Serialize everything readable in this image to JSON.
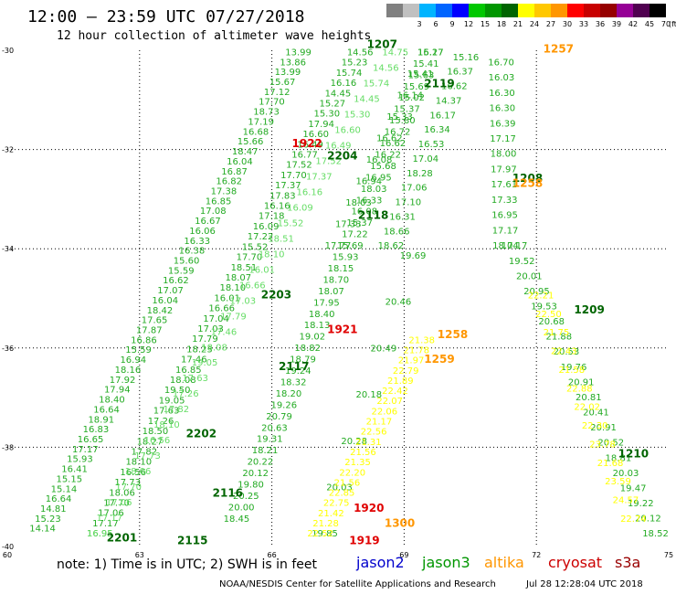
{
  "header": {
    "title": "12:00 – 23:59 UTC 07/27/2018",
    "subtitle": "12 hour collection of altimeter wave heights"
  },
  "color_scale": {
    "unit_label": "(ft)",
    "bins": [
      {
        "label": "",
        "color": "#808080"
      },
      {
        "label": "3",
        "color": "#c0c0c0"
      },
      {
        "label": "6",
        "color": "#00b4ff"
      },
      {
        "label": "9",
        "color": "#0064ff"
      },
      {
        "label": "12",
        "color": "#0000ff"
      },
      {
        "label": "15",
        "color": "#00c800"
      },
      {
        "label": "18",
        "color": "#009600"
      },
      {
        "label": "21",
        "color": "#006400"
      },
      {
        "label": "24",
        "color": "#ffff00"
      },
      {
        "label": "27",
        "color": "#ffc800"
      },
      {
        "label": "30",
        "color": "#ff9600"
      },
      {
        "label": "33",
        "color": "#ff0000"
      },
      {
        "label": "36",
        "color": "#c80000"
      },
      {
        "label": "39",
        "color": "#960000"
      },
      {
        "label": "42",
        "color": "#960096"
      },
      {
        "label": "45",
        "color": "#500050"
      },
      {
        "label": "70",
        "color": "#000000"
      }
    ]
  },
  "map": {
    "lon_range": [
      60,
      75
    ],
    "lat_range": [
      -40,
      -30
    ],
    "lon_ticks": [
      60,
      63,
      66,
      69,
      72,
      75
    ],
    "lat_ticks": [
      -40,
      -38,
      -36,
      -34,
      -32,
      -30
    ],
    "lon_tick_labels": [
      "60",
      "63",
      "66",
      "69",
      "72",
      "75"
    ],
    "lat_tick_labels": [
      "-40",
      "-38",
      "-36",
      "-34",
      "-32",
      "-30"
    ],
    "grid": true
  },
  "text_colors": {
    "light": "#66dd66",
    "mid": "#22aa22",
    "dark": "#006400",
    "yellow": "#ffff00",
    "orange": "#ff9600",
    "red": "#e00000"
  },
  "tracks": [
    {
      "name": "t1",
      "shade": "mid",
      "start": [
        60.8,
        -39.7
      ],
      "end": [
        66.6,
        -30.1
      ],
      "values": [
        "14.14",
        "15.23",
        "14.81",
        "16.64",
        "15.14",
        "15.15",
        "16.41",
        "15.93",
        "17.17",
        "16.65",
        "16.83",
        "18.91",
        "16.64",
        "18.40",
        "17.94",
        "17.92",
        "18.16",
        "16.94",
        "15.59",
        "16.86",
        "17.87",
        "17.65",
        "18.42",
        "16.04",
        "17.07",
        "16.62",
        "15.59",
        "15.60",
        "16.38",
        "16.33",
        "16.06",
        "16.67",
        "17.08",
        "16.85",
        "17.38",
        "16.82",
        "16.87",
        "16.04",
        "18.47",
        "15.66",
        "16.68",
        "17.19",
        "18.73",
        "17.70",
        "17.12",
        "15.67",
        "13.99",
        "13.86",
        "13.99"
      ]
    },
    {
      "name": "t2",
      "shade": "mid",
      "start": [
        62.1,
        -39.8
      ],
      "end": [
        68.0,
        -30.1
      ],
      "values": [
        "16.95",
        "17.17",
        "17.06",
        "17.70",
        "18.06",
        "17.73",
        "16.56",
        "18.10",
        "17.82",
        "18.27",
        "18.50",
        "17.26",
        "17.63",
        "19.05",
        "19.50",
        "18.08",
        "16.85",
        "17.46",
        "18.23",
        "17.79",
        "17.03",
        "17.04",
        "16.66",
        "16.01",
        "18.10",
        "18.07",
        "18.51",
        "17.70",
        "15.52",
        "17.22",
        "16.09",
        "17.18",
        "16.16",
        "17.83",
        "17.37",
        "17.70",
        "17.52",
        "16.77",
        "16.49",
        "16.60",
        "17.94",
        "15.30",
        "15.27",
        "14.45",
        "16.16",
        "15.74",
        "15.23",
        "14.56"
      ]
    },
    {
      "name": "t3",
      "shade": "light",
      "start": [
        62.1,
        -39.8
      ],
      "end": [
        68.8,
        -30.1
      ],
      "values": [
        "16.95",
        "17.17",
        "17.06",
        "17.70",
        "18.06",
        "17.73",
        "16.56",
        "18.10",
        "17.82",
        "17.26",
        "17.63",
        "19.05",
        "18.08",
        "17.46",
        "17.79",
        "17.03",
        "16.66",
        "16.01",
        "18.10",
        "18.51",
        "15.52",
        "16.09",
        "16.16",
        "17.37",
        "17.52",
        "16.49",
        "16.60",
        "15.30",
        "14.45",
        "15.74",
        "14.56",
        "14.75"
      ]
    },
    {
      "name": "t4",
      "shade": "mid",
      "start": [
        65.2,
        -39.5
      ],
      "end": [
        69.6,
        -30.1
      ],
      "values": [
        "18.45",
        "20.00",
        "20.25",
        "19.80",
        "20.12",
        "20.22",
        "18.21",
        "19.31",
        "20.63",
        "20.79",
        "19.26",
        "18.20",
        "18.32",
        "19.24",
        "18.79",
        "18.82",
        "19.02",
        "18.13",
        "18.40",
        "17.95",
        "18.07",
        "18.70",
        "18.15",
        "15.93",
        "15.69",
        "17.22",
        "15.37",
        "16.08",
        "16.33",
        "18.03",
        "16.95",
        "15.68",
        "16.22",
        "16.62",
        "16.72",
        "15.80",
        "15.37",
        "15.02",
        "15.69",
        "15.63",
        "15.41",
        "16.17"
      ]
    },
    {
      "name": "t5",
      "shade": "mid",
      "start": [
        69.6,
        -30.1
      ],
      "end": [
        67.5,
        -34.0
      ],
      "values": [
        "15.27",
        "15.41",
        "16.14",
        "15.33",
        "16.62",
        "16.08",
        "16.94",
        "18.03",
        "17.33",
        "17.77"
      ]
    },
    {
      "name": "t6",
      "shade": "mid",
      "start": [
        70.4,
        -30.2
      ],
      "end": [
        68.7,
        -34.0
      ],
      "values": [
        "15.16",
        "16.37",
        "16.62",
        "14.37",
        "16.17",
        "16.34",
        "16.53",
        "17.04",
        "18.28",
        "17.06",
        "17.10",
        "16.31",
        "18.66",
        "18.62"
      ]
    },
    {
      "name": "t7",
      "shade": "mid",
      "start": [
        69.2,
        -34.2
      ],
      "end": [
        67.2,
        -39.8
      ],
      "values": [
        "19.69",
        "20.46",
        "20.49",
        "20.18",
        "20.28",
        "20.03",
        "19.85"
      ]
    },
    {
      "name": "t8",
      "shade": "yellow",
      "start": [
        69.4,
        -35.9
      ],
      "end": [
        67.1,
        -39.8
      ],
      "values": [
        "21.38",
        "21.78",
        "21.97",
        "22.79",
        "21.89",
        "22.42",
        "22.07",
        "22.06",
        "21.17",
        "22.56",
        "21.31",
        "21.56",
        "21.35",
        "22.20",
        "21.56",
        "22.85",
        "22.75",
        "21.42",
        "21.28",
        "22.52"
      ]
    },
    {
      "name": "t9",
      "shade": "mid",
      "start": [
        71.2,
        -30.3
      ],
      "end": [
        71.3,
        -34.0
      ],
      "values": [
        "16.70",
        "16.03",
        "16.30",
        "16.30",
        "16.39",
        "17.17",
        "18.00",
        "17.97",
        "17.61",
        "17.33",
        "16.95",
        "17.17",
        "18.04"
      ]
    },
    {
      "name": "t10",
      "shade": "mid",
      "start": [
        71.5,
        -34.0
      ],
      "end": [
        74.7,
        -39.8
      ],
      "values": [
        "17.17",
        "19.52",
        "20.01",
        "20.95",
        "19.53",
        "20.68",
        "21.88",
        "20.53",
        "19.76",
        "20.91",
        "20.81",
        "20.41",
        "20.91",
        "20.52",
        "18.81",
        "20.03",
        "19.47",
        "19.22",
        "20.12",
        "18.52"
      ]
    },
    {
      "name": "t11",
      "shade": "yellow",
      "start": [
        72.1,
        -35.0
      ],
      "end": [
        74.2,
        -39.5
      ],
      "values": [
        "22.21",
        "22.50",
        "21.75",
        "22.43",
        "21.58",
        "22.88",
        "22.02",
        "22.30",
        "23.78",
        "21.68",
        "23.59",
        "24.57",
        "22.74"
      ]
    }
  ],
  "pass_labels": [
    {
      "text": "1207",
      "lon": 68.5,
      "lat": -29.95,
      "shade": "dark"
    },
    {
      "text": "1257",
      "lon": 72.5,
      "lat": -30.05,
      "shade": "orange"
    },
    {
      "text": "2119",
      "lon": 69.8,
      "lat": -30.75,
      "shade": "dark"
    },
    {
      "text": "1922",
      "lon": 66.8,
      "lat": -31.95,
      "shade": "red"
    },
    {
      "text": "2204",
      "lon": 67.6,
      "lat": -32.2,
      "shade": "dark"
    },
    {
      "text": "1208",
      "lon": 71.8,
      "lat": -32.65,
      "shade": "dark"
    },
    {
      "text": "1258",
      "lon": 71.8,
      "lat": -32.75,
      "shade": "orange"
    },
    {
      "text": "2118",
      "lon": 68.3,
      "lat": -33.4,
      "shade": "dark"
    },
    {
      "text": "2203",
      "lon": 66.1,
      "lat": -35.0,
      "shade": "dark"
    },
    {
      "text": "1209",
      "lon": 73.2,
      "lat": -35.3,
      "shade": "dark"
    },
    {
      "text": "1921",
      "lon": 67.6,
      "lat": -35.7,
      "shade": "red"
    },
    {
      "text": "1258",
      "lon": 70.1,
      "lat": -35.8,
      "shade": "orange"
    },
    {
      "text": "1259",
      "lon": 69.8,
      "lat": -36.3,
      "shade": "orange"
    },
    {
      "text": "2117",
      "lon": 66.5,
      "lat": -36.45,
      "shade": "dark"
    },
    {
      "text": "2202",
      "lon": 64.4,
      "lat": -37.8,
      "shade": "dark"
    },
    {
      "text": "1210",
      "lon": 74.2,
      "lat": -38.2,
      "shade": "dark"
    },
    {
      "text": "2116",
      "lon": 65.0,
      "lat": -39.0,
      "shade": "dark"
    },
    {
      "text": "1920",
      "lon": 68.2,
      "lat": -39.3,
      "shade": "red"
    },
    {
      "text": "1300",
      "lon": 68.9,
      "lat": -39.6,
      "shade": "orange"
    },
    {
      "text": "2201",
      "lon": 62.6,
      "lat": -39.9,
      "shade": "dark"
    },
    {
      "text": "2115",
      "lon": 64.2,
      "lat": -39.95,
      "shade": "dark"
    },
    {
      "text": "1919",
      "lon": 68.1,
      "lat": -39.95,
      "shade": "red"
    }
  ],
  "footer": {
    "note": "note: 1) Time is in UTC; 2) SWH is in feet",
    "satellites": [
      {
        "name": "jason2",
        "color": "#0000cc"
      },
      {
        "name": "jason3",
        "color": "#009600"
      },
      {
        "name": "altika",
        "color": "#ff9600"
      },
      {
        "name": "cryosat",
        "color": "#cc0000"
      },
      {
        "name": "s3a",
        "color": "#990000"
      }
    ],
    "credit": "NOAA/NESDIS Center for Satellite Applications and Research",
    "timestamp": "Jul 28 12:28:04 UTC 2018"
  }
}
